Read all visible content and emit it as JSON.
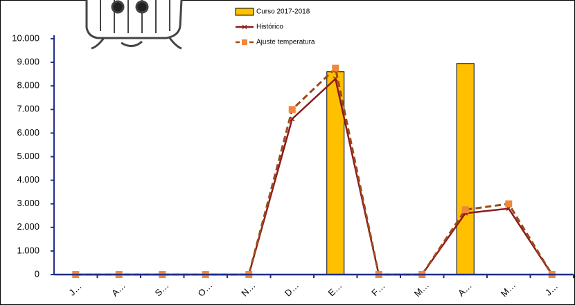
{
  "chart_data": {
    "type": "bar-line",
    "categories": [
      "J…",
      "A…",
      "S…",
      "O…",
      "N…",
      "D…",
      "E…",
      "F…",
      "M…",
      "A…",
      "M…",
      "J…"
    ],
    "series": [
      {
        "name": "Curso 2017-2018",
        "type": "bar",
        "color": "#ffc000",
        "values": [
          0,
          0,
          0,
          0,
          0,
          0,
          8600,
          0,
          0,
          8950,
          0,
          0
        ]
      },
      {
        "name": "Histórico",
        "type": "line",
        "color": "#8b1a1a",
        "values": [
          0,
          0,
          0,
          0,
          0,
          6600,
          8300,
          0,
          0,
          2600,
          2800,
          0
        ]
      },
      {
        "name": "Ajuste temperatura",
        "type": "dashed-line",
        "color": "#9c4a1a",
        "marker_color": "#f0883a",
        "values": [
          0,
          0,
          0,
          0,
          0,
          7000,
          8750,
          0,
          0,
          2750,
          3000,
          0
        ]
      }
    ],
    "ylim": [
      0,
      10000
    ],
    "yticks": [
      0,
      {
        "value": 1000,
        "label": "1.000"
      },
      {
        "value": 2000,
        "label": "2.000"
      },
      {
        "value": 3000,
        "label": "3.000"
      },
      {
        "value": 4000,
        "label": "4.000"
      },
      {
        "value": 5000,
        "label": "5.000"
      },
      {
        "value": 6000,
        "label": "6.000"
      },
      {
        "value": 7000,
        "label": "7.000"
      },
      {
        "value": 8000,
        "label": "8.000"
      },
      {
        "value": 9000,
        "label": "9.000"
      },
      {
        "value": 10000,
        "label": "10.000"
      }
    ],
    "grid": false
  }
}
